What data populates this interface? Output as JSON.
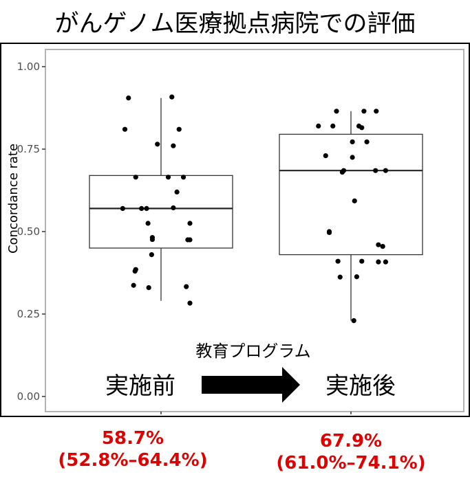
{
  "title": "がんゲノム医療拠点病院での評価",
  "annotation": {
    "program_label": "教育プログラム",
    "before_label": "実施前",
    "after_label": "実施後"
  },
  "summary": {
    "before": {
      "value": "58.7%",
      "ci": "(52.8%–64.4%)"
    },
    "after": {
      "value": "67.9%",
      "ci": "(61.0%–74.1%)"
    }
  },
  "colors": {
    "stat_text": "#e00000",
    "point": "#000000",
    "axis_text": "#4d4d4d",
    "panel_border": "#b3b3b3"
  },
  "chart_data": {
    "type": "boxplot",
    "ylabel": "Concordance rate",
    "xlabel": "",
    "ylim": [
      0,
      1.05
    ],
    "yticks": [
      "0.00",
      "0.25",
      "0.50",
      "0.75",
      "1.00"
    ],
    "grid": false,
    "groups": [
      {
        "key": "before",
        "box": {
          "whisker_low": 0.29,
          "q1": 0.45,
          "median": 0.57,
          "q3": 0.67,
          "whisker_high": 0.905
        },
        "points": [
          {
            "j": -0.45,
            "y": 0.905
          },
          {
            "j": 0.15,
            "y": 0.908
          },
          {
            "j": -0.5,
            "y": 0.81
          },
          {
            "j": 0.25,
            "y": 0.81
          },
          {
            "j": -0.05,
            "y": 0.765
          },
          {
            "j": 0.17,
            "y": 0.76
          },
          {
            "j": -0.35,
            "y": 0.665
          },
          {
            "j": 0.1,
            "y": 0.665
          },
          {
            "j": 0.31,
            "y": 0.665
          },
          {
            "j": 0.22,
            "y": 0.62
          },
          {
            "j": -0.53,
            "y": 0.57
          },
          {
            "j": -0.27,
            "y": 0.57
          },
          {
            "j": -0.2,
            "y": 0.57
          },
          {
            "j": 0.17,
            "y": 0.572
          },
          {
            "j": -0.18,
            "y": 0.525
          },
          {
            "j": 0.4,
            "y": 0.525
          },
          {
            "j": -0.12,
            "y": 0.482
          },
          {
            "j": -0.12,
            "y": 0.476
          },
          {
            "j": 0.37,
            "y": 0.475
          },
          {
            "j": 0.4,
            "y": 0.475
          },
          {
            "j": -0.13,
            "y": 0.43
          },
          {
            "j": -0.35,
            "y": 0.385
          },
          {
            "j": -0.36,
            "y": 0.38
          },
          {
            "j": -0.38,
            "y": 0.337
          },
          {
            "j": -0.17,
            "y": 0.33
          },
          {
            "j": 0.35,
            "y": 0.333
          },
          {
            "j": 0.4,
            "y": 0.283
          }
        ]
      },
      {
        "key": "after",
        "box": {
          "whisker_low": 0.23,
          "q1": 0.43,
          "median": 0.685,
          "q3": 0.795,
          "whisker_high": 0.865
        },
        "points": [
          {
            "j": -0.2,
            "y": 0.865
          },
          {
            "j": 0.18,
            "y": 0.865
          },
          {
            "j": 0.35,
            "y": 0.865
          },
          {
            "j": -0.45,
            "y": 0.82
          },
          {
            "j": -0.25,
            "y": 0.82
          },
          {
            "j": 0.11,
            "y": 0.82
          },
          {
            "j": 0.15,
            "y": 0.815
          },
          {
            "j": 0.02,
            "y": 0.772
          },
          {
            "j": 0.22,
            "y": 0.772
          },
          {
            "j": -0.35,
            "y": 0.73
          },
          {
            "j": 0.02,
            "y": 0.725
          },
          {
            "j": -0.12,
            "y": 0.68
          },
          {
            "j": -0.1,
            "y": 0.685
          },
          {
            "j": 0.34,
            "y": 0.685
          },
          {
            "j": 0.48,
            "y": 0.685
          },
          {
            "j": 0.05,
            "y": 0.593
          },
          {
            "j": -0.3,
            "y": 0.5
          },
          {
            "j": -0.3,
            "y": 0.497
          },
          {
            "j": 0.38,
            "y": 0.46
          },
          {
            "j": 0.44,
            "y": 0.455
          },
          {
            "j": -0.18,
            "y": 0.41
          },
          {
            "j": 0.15,
            "y": 0.41
          },
          {
            "j": 0.38,
            "y": 0.408
          },
          {
            "j": 0.48,
            "y": 0.408
          },
          {
            "j": -0.15,
            "y": 0.362
          },
          {
            "j": 0.08,
            "y": 0.363
          },
          {
            "j": 0.04,
            "y": 0.23
          }
        ]
      }
    ]
  }
}
